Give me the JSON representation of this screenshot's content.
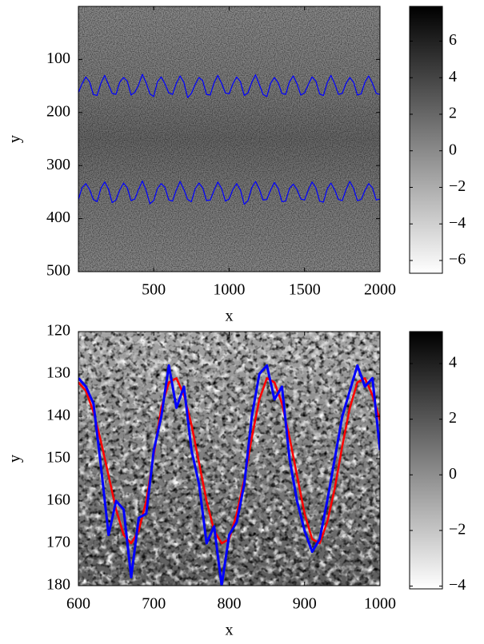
{
  "chart_data": [
    {
      "type": "image",
      "xlabel": "x",
      "ylabel": "y",
      "xlim": [
        1,
        2000
      ],
      "ylim": [
        0,
        500
      ],
      "yreversed": true,
      "xticks": [
        500,
        1000,
        1500,
        2000
      ],
      "yticks": [
        100,
        200,
        300,
        400,
        500
      ],
      "x": [
        0,
        25,
        50,
        75,
        100,
        125,
        150,
        175,
        200,
        225,
        250,
        275,
        300,
        325,
        350,
        375,
        400,
        425,
        450,
        475,
        500,
        525,
        550,
        575,
        600,
        625,
        650,
        675,
        700,
        725,
        750,
        775,
        800,
        825,
        850,
        875,
        900,
        925,
        950,
        975,
        1000,
        1025,
        1050,
        1075,
        1100,
        1125,
        1150,
        1175,
        1200,
        1225,
        1250,
        1275,
        1300,
        1325,
        1350,
        1375,
        1400,
        1425,
        1450,
        1475,
        1500,
        1525,
        1550,
        1575,
        1600,
        1625,
        1650,
        1675,
        1700,
        1725,
        1750,
        1775,
        1800,
        1825,
        1850,
        1875,
        1900,
        1925,
        1950,
        1975,
        2000
      ],
      "series": [
        {
          "color": "#0000ff",
          "values": [
            163,
            146,
            133,
            142,
            166,
            168,
            145,
            130,
            147,
            164,
            166,
            143,
            134,
            141,
            167,
            162,
            148,
            128,
            144,
            165,
            170,
            142,
            133,
            146,
            163,
            166,
            145,
            131,
            143,
            172,
            164,
            147,
            134,
            140,
            166,
            167,
            144,
            130,
            145,
            163,
            165,
            146,
            133,
            142,
            168,
            163,
            143,
            129,
            147,
            166,
            170,
            145,
            134,
            144,
            164,
            166,
            142,
            131,
            146,
            167,
            163,
            147,
            133,
            141,
            165,
            168,
            144,
            130,
            146,
            166,
            164,
            145,
            134,
            143,
            167,
            165,
            143,
            131,
            145,
            164,
            166
          ]
        },
        {
          "color": "#0000ff",
          "values": [
            365,
            342,
            334,
            345,
            364,
            368,
            343,
            331,
            344,
            370,
            365,
            346,
            333,
            342,
            366,
            363,
            345,
            329,
            347,
            372,
            366,
            343,
            334,
            341,
            365,
            367,
            346,
            330,
            345,
            364,
            368,
            344,
            333,
            342,
            366,
            365,
            347,
            331,
            343,
            367,
            363,
            345,
            334,
            346,
            373,
            366,
            342,
            330,
            344,
            365,
            364,
            346,
            332,
            343,
            368,
            367,
            343,
            335,
            345,
            363,
            365,
            346,
            331,
            342,
            367,
            369,
            344,
            333,
            346,
            364,
            366,
            345,
            330,
            343,
            366,
            364,
            347,
            334,
            342,
            365,
            363
          ]
        }
      ],
      "colorbar": {
        "lim": [
          -6.7,
          7.9
        ],
        "ticks": [
          {
            "value": -6,
            "label": "−6"
          },
          {
            "value": -4,
            "label": "−4"
          },
          {
            "value": -2,
            "label": "−2"
          },
          0,
          2,
          4,
          6
        ]
      }
    },
    {
      "type": "image",
      "xlabel": "x",
      "ylabel": "y",
      "xlim": [
        600,
        1000
      ],
      "ylim": [
        120,
        180
      ],
      "yreversed": true,
      "xticks": [
        600,
        700,
        800,
        900,
        1000
      ],
      "yticks": [
        120,
        130,
        140,
        150,
        160,
        170,
        180
      ],
      "x": [
        600,
        610,
        620,
        630,
        640,
        650,
        660,
        670,
        680,
        690,
        700,
        710,
        720,
        730,
        740,
        750,
        760,
        770,
        780,
        790,
        800,
        810,
        820,
        830,
        840,
        850,
        860,
        870,
        880,
        890,
        900,
        910,
        920,
        930,
        940,
        950,
        960,
        970,
        980,
        990,
        1000
      ],
      "series": [
        {
          "color": "#ff0000",
          "values": [
            132,
            134,
            139,
            146,
            154,
            162,
            168,
            170,
            167,
            160,
            149,
            138,
            132,
            131,
            135,
            142,
            151,
            160,
            167,
            170,
            169,
            163,
            155,
            145,
            136,
            131,
            132,
            137,
            145,
            154,
            163,
            169,
            170,
            165,
            157,
            147,
            138,
            132,
            131,
            135,
            141
          ]
        },
        {
          "color": "#0000ff",
          "values": [
            131,
            133,
            137,
            152,
            168,
            160,
            162,
            178,
            164,
            163,
            148,
            140,
            128,
            138,
            133,
            148,
            156,
            170,
            166,
            180,
            168,
            165,
            156,
            140,
            130,
            128,
            136,
            133,
            150,
            160,
            167,
            172,
            169,
            160,
            150,
            140,
            134,
            128,
            133,
            131,
            148
          ]
        }
      ],
      "colorbar": {
        "lim": [
          -4.1,
          5.15
        ],
        "ticks": [
          {
            "value": -4,
            "label": "−4"
          },
          {
            "value": -2,
            "label": "−2"
          },
          0,
          2,
          4
        ]
      }
    }
  ]
}
